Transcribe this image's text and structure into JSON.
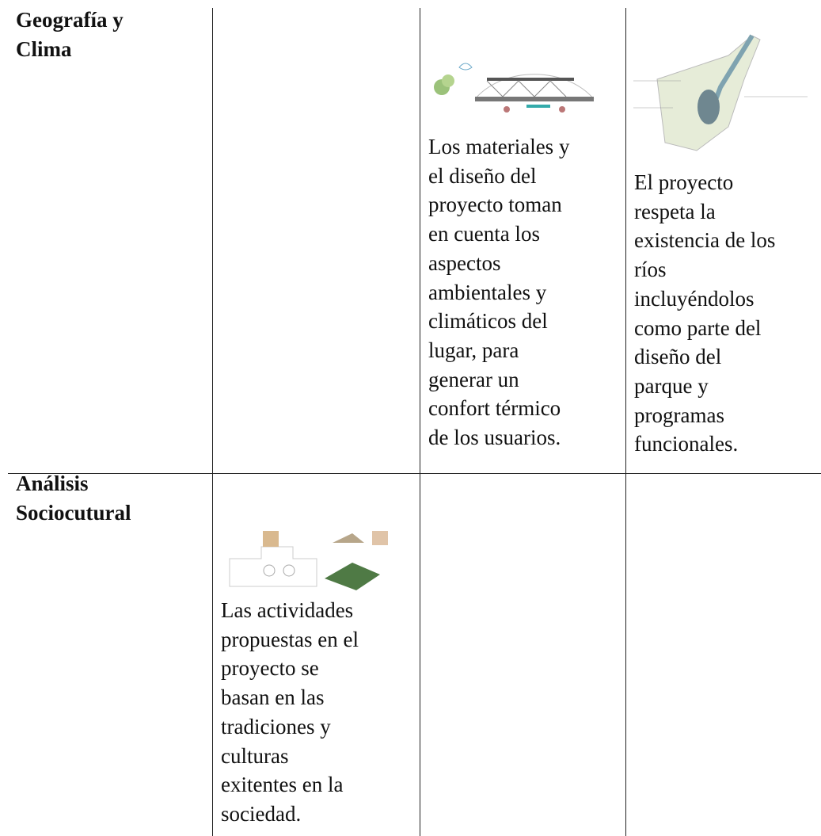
{
  "table": {
    "rows": [
      {
        "label": [
          "Geografía y",
          "Clima"
        ],
        "cells": [
          [],
          [
            "Los materiales y",
            "el diseño del",
            "proyecto toman",
            "en cuenta los",
            "aspectos",
            "ambientales y",
            "climáticos del",
            "lugar, para",
            "generar un",
            "confort térmico",
            "de los usuarios."
          ],
          [
            "El proyecto",
            "respeta la",
            "existencia de los",
            "ríos",
            "incluyéndolos",
            "como parte del",
            "diseño del",
            "parque y",
            "programas",
            "funcionales."
          ]
        ]
      },
      {
        "label": [
          "Análisis",
          "Sociocutural"
        ],
        "cells": [
          [
            "Las actividades",
            "propuestas en el",
            "proyecto se",
            "basan en las",
            "tradiciones y",
            "culturas",
            "exitentes en la",
            "sociedad."
          ],
          [],
          []
        ]
      }
    ]
  }
}
